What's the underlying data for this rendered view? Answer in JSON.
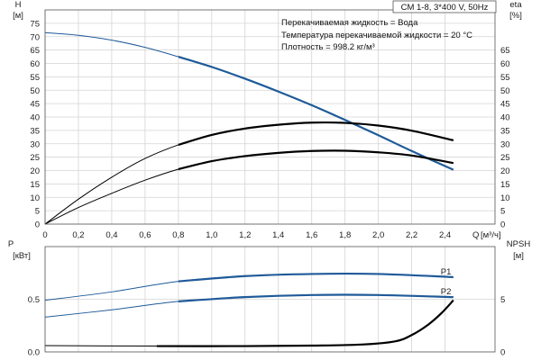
{
  "header": {
    "model_box": "CM 1-8, 3*400 V, 50Hz",
    "info_lines": [
      "Перекачиваемая жидкость = Вода",
      "Температура перекачиваемой жидкости = 20 °C",
      "Плотность = 998.2 кг/м³"
    ]
  },
  "chart_data": [
    {
      "type": "line",
      "panel": "head-efficiency",
      "xlabel": "Q",
      "xunit": "[м³/ч]",
      "xlim": [
        0,
        2.7
      ],
      "xticks": [
        0,
        0.2,
        0.4,
        0.6,
        0.8,
        1.0,
        1.2,
        1.4,
        1.6,
        1.8,
        2.0,
        2.2,
        2.4
      ],
      "xtick_labels": [
        "0",
        "0,2",
        "0,4",
        "0,6",
        "0,8",
        "1,0",
        "1,2",
        "1,4",
        "1,6",
        "1,8",
        "2,0",
        "2,2",
        "2,4"
      ],
      "y_left": {
        "label": "H",
        "unit": "[м]",
        "lim": [
          0,
          80
        ],
        "ticks": [
          0,
          5,
          10,
          15,
          20,
          25,
          30,
          35,
          40,
          45,
          50,
          55,
          60,
          65,
          70,
          75
        ]
      },
      "y_right": {
        "label": "eta",
        "unit": "[%]",
        "lim": [
          0,
          80
        ],
        "ticks": [
          0,
          5,
          10,
          15,
          20,
          25,
          30,
          35,
          40,
          45,
          50,
          55,
          60,
          65
        ]
      },
      "grid": true,
      "series": [
        {
          "axis": "left",
          "color": "#1f5a99",
          "duty_range": [
            0.67,
            2.45
          ],
          "x": [
            0,
            0.2,
            0.4,
            0.6,
            0.8,
            1.0,
            1.2,
            1.4,
            1.6,
            1.8,
            2.0,
            2.2,
            2.45
          ],
          "y": [
            71.5,
            70.5,
            68.7,
            66.0,
            62.5,
            58.7,
            54.3,
            49.5,
            44.4,
            38.9,
            33.2,
            27.3,
            20.3
          ]
        },
        {
          "axis": "right",
          "color": "#000000",
          "duty_range": [
            0.67,
            2.45
          ],
          "x": [
            0,
            0.2,
            0.4,
            0.6,
            0.8,
            1.0,
            1.2,
            1.4,
            1.6,
            1.8,
            2.0,
            2.2,
            2.45
          ],
          "y": [
            0,
            9.3,
            17.5,
            24.5,
            29.6,
            33.3,
            35.7,
            37.1,
            37.9,
            37.8,
            36.8,
            34.9,
            31.3
          ]
        },
        {
          "axis": "left",
          "color": "#000000",
          "duty_range": [
            0.67,
            2.45
          ],
          "x": [
            0,
            0.2,
            0.4,
            0.6,
            0.8,
            1.0,
            1.2,
            1.4,
            1.6,
            1.8,
            2.0,
            2.2,
            2.45
          ],
          "y": [
            0,
            6.2,
            11.5,
            16.4,
            20.5,
            23.5,
            25.4,
            26.6,
            27.3,
            27.4,
            26.8,
            25.6,
            22.8
          ]
        }
      ]
    },
    {
      "type": "line",
      "panel": "power-npsh",
      "xlim": [
        0,
        2.7
      ],
      "y_left": {
        "label": "P",
        "unit": "[кВт]",
        "lim": [
          0,
          1.0
        ],
        "ticks": [
          0.0,
          0.5
        ],
        "tick_labels": [
          "0.0",
          "0.5"
        ]
      },
      "y_right": {
        "label": "NPSH",
        "unit": "[м]",
        "lim": [
          0,
          10
        ],
        "ticks": [
          0,
          5
        ],
        "tick_labels": [
          "0",
          "5"
        ]
      },
      "grid": true,
      "series": [
        {
          "name": "P1",
          "axis": "left",
          "color": "#1f5a99",
          "duty_range": [
            0.67,
            2.45
          ],
          "x": [
            0,
            0.4,
            0.8,
            1.2,
            1.6,
            2.0,
            2.45
          ],
          "y": [
            0.49,
            0.57,
            0.67,
            0.72,
            0.74,
            0.74,
            0.71
          ]
        },
        {
          "name": "P2",
          "axis": "left",
          "color": "#1f5a99",
          "duty_range": [
            0.67,
            2.45
          ],
          "x": [
            0,
            0.4,
            0.8,
            1.2,
            1.6,
            2.0,
            2.45
          ],
          "y": [
            0.33,
            0.4,
            0.48,
            0.52,
            0.54,
            0.54,
            0.52
          ]
        },
        {
          "axis": "right",
          "color": "#000000",
          "duty_range": [
            0.67,
            2.45
          ],
          "x": [
            0,
            0.67,
            1.2,
            1.6,
            1.9,
            2.1,
            2.2,
            2.3,
            2.38,
            2.45
          ],
          "y": [
            0.6,
            0.55,
            0.55,
            0.6,
            0.7,
            1.0,
            1.6,
            2.6,
            3.7,
            4.9
          ]
        }
      ]
    }
  ]
}
